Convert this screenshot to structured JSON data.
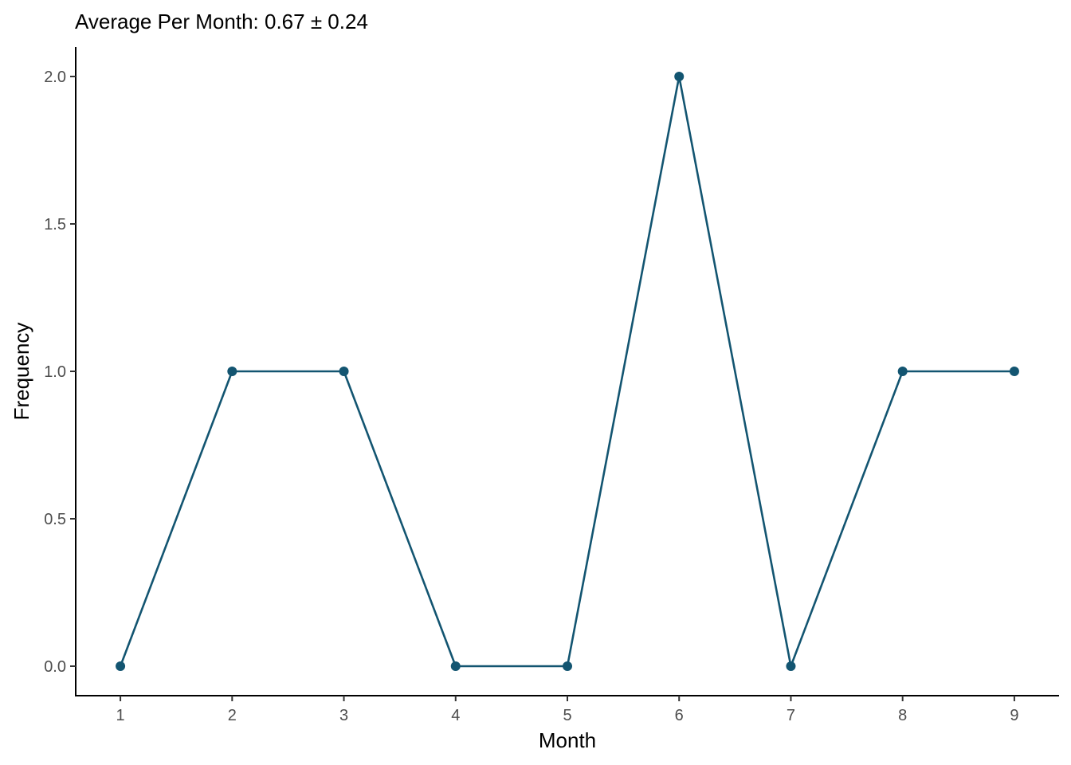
{
  "chart_data": {
    "type": "line",
    "title": "Average Per Month: 0.67 ± 0.24",
    "xlabel": "Month",
    "ylabel": "Frequency",
    "x": [
      1,
      2,
      3,
      4,
      5,
      6,
      7,
      8,
      9
    ],
    "series": [
      {
        "values": [
          0,
          1,
          1,
          0,
          0,
          2,
          0,
          1,
          1
        ],
        "color": "#135571"
      }
    ],
    "xticks": [
      "1",
      "2",
      "3",
      "4",
      "5",
      "6",
      "7",
      "8",
      "9"
    ],
    "yticks": [
      "0.0",
      "0.5",
      "1.0",
      "1.5",
      "2.0"
    ],
    "xlim": [
      0.6,
      9.4
    ],
    "ylim": [
      -0.1,
      2.1
    ],
    "grid": false,
    "legend": "none"
  }
}
